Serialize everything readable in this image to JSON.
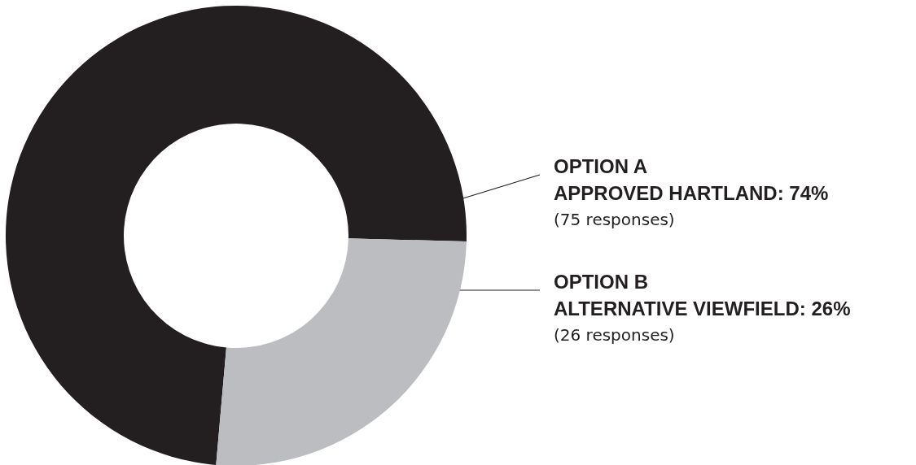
{
  "chart_data": {
    "type": "donut",
    "categories": [
      "OPTION A\nAPPROVED HARTLAND",
      "OPTION B\nALTERNATIVE VIEWFIELD"
    ],
    "values": [
      74,
      26
    ],
    "colors": [
      "#231f20",
      "#bcbdc0"
    ],
    "value_labels": [
      "74%",
      "26%"
    ],
    "annotations": [
      "(75 responses)",
      "(26 responses)"
    ],
    "legend": false
  }
}
